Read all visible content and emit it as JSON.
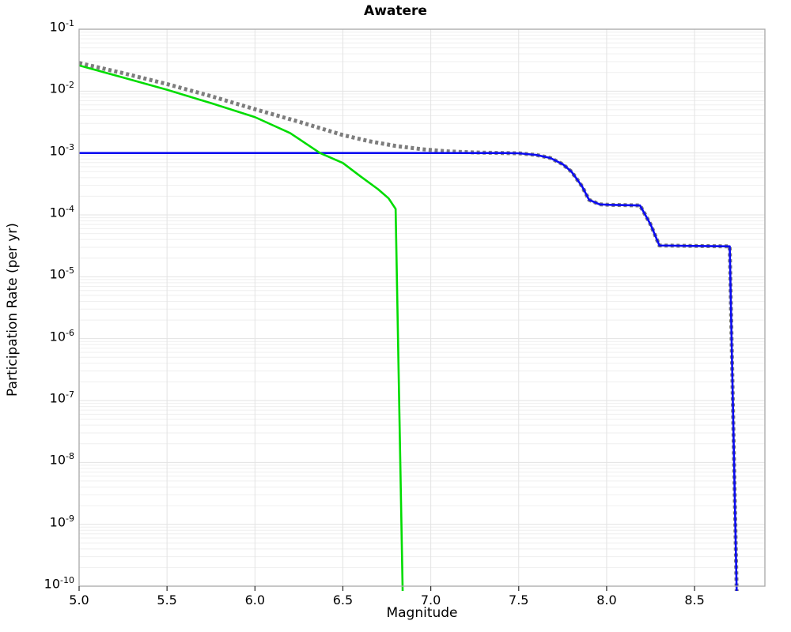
{
  "chart_data": {
    "type": "line",
    "title": "Awatere",
    "xlabel": "Magnitude",
    "ylabel": "Participation Rate (per yr)",
    "x_axis": {
      "min": 5.0,
      "max": 8.9,
      "ticks": [
        5.0,
        5.5,
        6.0,
        6.5,
        7.0,
        7.5,
        8.0,
        8.5
      ],
      "tick_labels": [
        "5.0",
        "5.5",
        "6.0",
        "6.5",
        "7.0",
        "7.5",
        "8.0",
        "8.5"
      ]
    },
    "y_axis": {
      "scale": "log",
      "min": 1e-10,
      "max": 0.1,
      "tick_exponents": [
        -1,
        -2,
        -3,
        -4,
        -5,
        -6,
        -7,
        -8,
        -9,
        -10
      ],
      "tick_labels": [
        "10-1",
        "10-2",
        "10-3",
        "10-4",
        "10-5",
        "10-6",
        "10-7",
        "10-8",
        "10-9",
        "10-10"
      ]
    },
    "grid": {
      "horizontal_major": true,
      "horizontal_minor": true,
      "vertical_major": true,
      "color_major": "#e3e3e3",
      "color_minor": "#efefef"
    },
    "legend": "none",
    "series": [
      {
        "name": "total-rate-dotted",
        "style": "dotted",
        "color": "#7d7d7d",
        "width": 5,
        "points": [
          [
            5.0,
            0.0285
          ],
          [
            5.25,
            0.0195
          ],
          [
            5.5,
            0.013
          ],
          [
            5.75,
            0.0083
          ],
          [
            6.0,
            0.0051
          ],
          [
            6.25,
            0.0032
          ],
          [
            6.5,
            0.00195
          ],
          [
            6.65,
            0.00155
          ],
          [
            6.8,
            0.0013
          ],
          [
            6.95,
            0.00115
          ],
          [
            7.1,
            0.00106
          ],
          [
            7.25,
            0.00102
          ],
          [
            7.4,
            0.001
          ],
          [
            7.5,
            0.00099
          ],
          [
            7.6,
            0.00093
          ],
          [
            7.68,
            0.00083
          ],
          [
            7.75,
            0.00066
          ],
          [
            7.8,
            0.0005
          ],
          [
            7.86,
            0.00029
          ],
          [
            7.9,
            0.000175
          ],
          [
            7.96,
            0.000148
          ],
          [
            8.02,
            0.000145
          ],
          [
            8.19,
            0.000142
          ],
          [
            8.25,
            7e-05
          ],
          [
            8.3,
            3.2e-05
          ],
          [
            8.5,
            3.15e-05
          ],
          [
            8.7,
            3.1e-05
          ],
          [
            8.746,
            1e-11
          ]
        ]
      },
      {
        "name": "characteristic-rate-blue",
        "style": "solid",
        "color": "#0b0bf0",
        "width": 2.6,
        "points": [
          [
            5.0,
            0.001
          ],
          [
            7.4,
            0.001
          ],
          [
            7.5,
            0.00099
          ],
          [
            7.6,
            0.00093
          ],
          [
            7.68,
            0.00083
          ],
          [
            7.75,
            0.00066
          ],
          [
            7.8,
            0.0005
          ],
          [
            7.86,
            0.00029
          ],
          [
            7.9,
            0.000175
          ],
          [
            7.96,
            0.000148
          ],
          [
            8.02,
            0.000145
          ],
          [
            8.19,
            0.000142
          ],
          [
            8.25,
            7e-05
          ],
          [
            8.3,
            3.2e-05
          ],
          [
            8.5,
            3.15e-05
          ],
          [
            8.7,
            3.1e-05
          ],
          [
            8.746,
            1e-11
          ]
        ]
      },
      {
        "name": "gutenberg-richter-rate-green",
        "style": "solid",
        "color": "#00dc00",
        "width": 2.6,
        "points": [
          [
            5.0,
            0.026
          ],
          [
            5.25,
            0.0166
          ],
          [
            5.5,
            0.0105
          ],
          [
            5.75,
            0.0064
          ],
          [
            6.0,
            0.0038
          ],
          [
            6.2,
            0.0021
          ],
          [
            6.37,
            0.001
          ],
          [
            6.5,
            0.00069
          ],
          [
            6.6,
            0.00042
          ],
          [
            6.7,
            0.00026
          ],
          [
            6.76,
            0.000185
          ],
          [
            6.8,
            0.000125
          ],
          [
            6.846,
            1e-11
          ]
        ]
      }
    ],
    "frame_color": "#a8a8a8",
    "tick_color": "#262626"
  }
}
